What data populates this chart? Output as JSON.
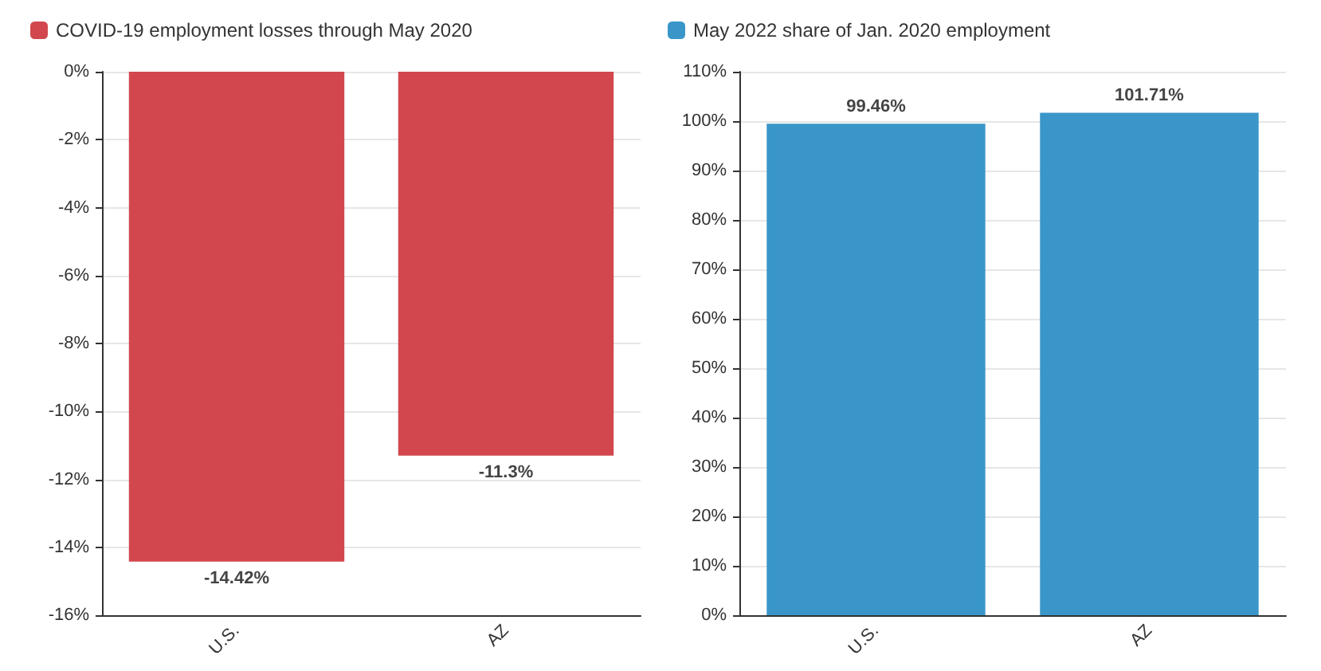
{
  "chart_data": [
    {
      "type": "bar",
      "categories": [
        "U.S.",
        "AZ"
      ],
      "series": [
        {
          "name": "COVID-19 employment losses through May 2020",
          "color": "#d2474d",
          "values": [
            -14.42,
            -11.3
          ],
          "value_labels": [
            "-14.42%",
            "-11.3%"
          ]
        }
      ],
      "ylim": [
        -16,
        0
      ],
      "yticks": [
        {
          "value": 0,
          "label": "0%"
        },
        {
          "value": -2,
          "label": "-2%"
        },
        {
          "value": -4,
          "label": "-4%"
        },
        {
          "value": -6,
          "label": "-6%"
        },
        {
          "value": -8,
          "label": "-8%"
        },
        {
          "value": -10,
          "label": "-10%"
        },
        {
          "value": -12,
          "label": "-12%"
        },
        {
          "value": -14,
          "label": "-14%"
        },
        {
          "value": -16,
          "label": "-16%"
        }
      ],
      "grid": "y",
      "legend": "top left"
    },
    {
      "type": "bar",
      "categories": [
        "U.S.",
        "AZ"
      ],
      "series": [
        {
          "name": "May 2022 share of Jan. 2020 employment",
          "color": "#3a96c8",
          "values": [
            99.46,
            101.71
          ],
          "value_labels": [
            "99.46%",
            "101.71%"
          ]
        }
      ],
      "ylim": [
        0,
        110
      ],
      "yticks": [
        {
          "value": 0,
          "label": "0%"
        },
        {
          "value": 10,
          "label": "10%"
        },
        {
          "value": 20,
          "label": "20%"
        },
        {
          "value": 30,
          "label": "30%"
        },
        {
          "value": 40,
          "label": "40%"
        },
        {
          "value": 50,
          "label": "50%"
        },
        {
          "value": 60,
          "label": "60%"
        },
        {
          "value": 70,
          "label": "70%"
        },
        {
          "value": 80,
          "label": "80%"
        },
        {
          "value": 90,
          "label": "90%"
        },
        {
          "value": 100,
          "label": "100%"
        },
        {
          "value": 110,
          "label": "110%"
        }
      ],
      "grid": "y",
      "legend": "top left"
    }
  ]
}
